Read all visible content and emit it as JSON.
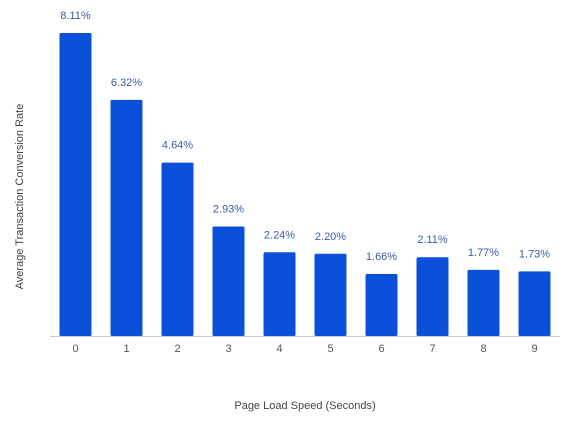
{
  "chart_data": {
    "type": "bar",
    "categories": [
      "0",
      "1",
      "2",
      "3",
      "4",
      "5",
      "6",
      "7",
      "8",
      "9"
    ],
    "values": [
      8.11,
      6.32,
      4.64,
      2.93,
      2.24,
      2.2,
      1.66,
      2.11,
      1.77,
      1.73
    ],
    "value_labels": [
      "8.11%",
      "6.32%",
      "4.64%",
      "2.93%",
      "2.24%",
      "2.20%",
      "1.66%",
      "2.11%",
      "1.77%",
      "1.73%"
    ],
    "xlabel": "Page Load Speed (Seconds)",
    "ylabel": "Average Transaction Conversion Rate",
    "ylim": [
      0,
      8.11
    ],
    "grid": false,
    "legend": "none",
    "colors": {
      "bar": "#0b50d9",
      "baseline": "#cccccc"
    }
  }
}
